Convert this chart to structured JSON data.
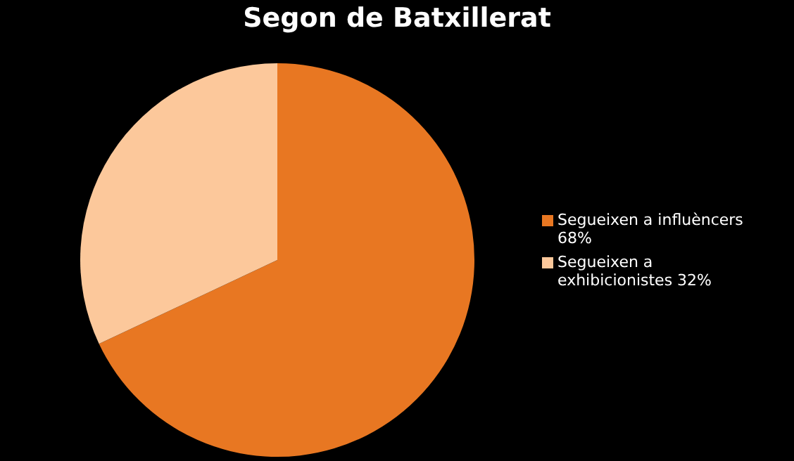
{
  "chart_data": {
    "type": "pie",
    "title": "Segon de Batxillerat",
    "categories": [
      "Segueixen a influèncers 68%",
      "Segueixen a exhibicionistes 32%"
    ],
    "values": [
      68,
      32
    ],
    "colors": [
      "#e87722",
      "#fcc89b"
    ],
    "legend": "right"
  }
}
